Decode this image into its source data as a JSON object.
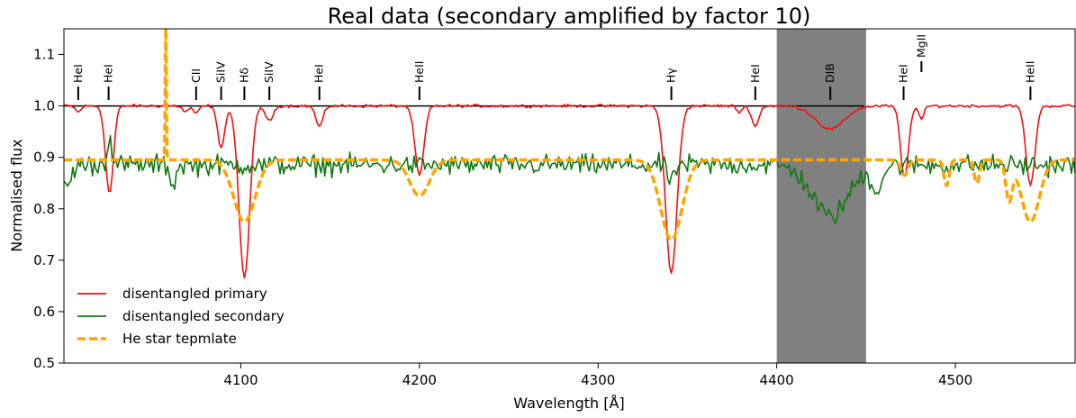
{
  "chart_data": {
    "type": "line",
    "title": "Real data (secondary amplified by factor 10)",
    "xlabel": "Wavelength [Å]",
    "ylabel": "Normalised flux",
    "xlim": [
      4001,
      4567
    ],
    "ylim": [
      0.5,
      1.15
    ],
    "xticks": [
      4100,
      4200,
      4300,
      4400,
      4500
    ],
    "yticks": [
      0.5,
      0.6,
      0.7,
      0.8,
      0.9,
      1.0,
      1.1
    ],
    "ytick_labels": [
      "0.5",
      "0.6",
      "0.7",
      "0.8",
      "0.9",
      "1.0",
      "1.1"
    ],
    "grid": false,
    "legend_position": "lower-left",
    "shaded_region": {
      "x0": 4400,
      "x1": 4450,
      "color": "#808080"
    },
    "reference_line": {
      "y": 1.0,
      "x0": 4001,
      "x1": 4449,
      "color": "#000000"
    },
    "line_labels": [
      {
        "text": "HeI",
        "x": 4009
      },
      {
        "text": "HeI",
        "x": 4026
      },
      {
        "text": "CII",
        "x": 4075
      },
      {
        "text": "SiIV",
        "x": 4089
      },
      {
        "text": "Hδ",
        "x": 4102
      },
      {
        "text": "SiIV",
        "x": 4116
      },
      {
        "text": "HeI",
        "x": 4144
      },
      {
        "text": "HeII",
        "x": 4200
      },
      {
        "text": "Hγ",
        "x": 4341
      },
      {
        "text": "HeI",
        "x": 4388
      },
      {
        "text": "DIB",
        "x": 4430
      },
      {
        "text": "HeI",
        "x": 4471
      },
      {
        "text": "MgII",
        "x": 4481,
        "raised": true
      },
      {
        "text": "HeII",
        "x": 4542
      }
    ],
    "series": [
      {
        "name": "disentangled primary",
        "color": "#ee1111",
        "style": "solid",
        "baseline": 1.0,
        "noise": 0.002,
        "lines": [
          {
            "c": 4009,
            "d": 0.012,
            "w": 1.5
          },
          {
            "c": 4026.5,
            "d": 0.17,
            "w": 2.2
          },
          {
            "c": 4069,
            "d": 0.012,
            "w": 1.5
          },
          {
            "c": 4075,
            "d": 0.015,
            "w": 1.5
          },
          {
            "c": 4089,
            "d": 0.08,
            "w": 2.0
          },
          {
            "c": 4102,
            "d": 0.335,
            "w": 3.0
          },
          {
            "c": 4116,
            "d": 0.03,
            "w": 2.0
          },
          {
            "c": 4144,
            "d": 0.04,
            "w": 2.0
          },
          {
            "c": 4200,
            "d": 0.135,
            "w": 2.5
          },
          {
            "c": 4341,
            "d": 0.325,
            "w": 3.2
          },
          {
            "c": 4379,
            "d": 0.012,
            "w": 1.5
          },
          {
            "c": 4388,
            "d": 0.04,
            "w": 2.0
          },
          {
            "c": 4430,
            "d": 0.045,
            "w": 8.0
          },
          {
            "c": 4471.5,
            "d": 0.14,
            "w": 2.2
          },
          {
            "c": 4481,
            "d": 0.025,
            "w": 1.5
          },
          {
            "c": 4542,
            "d": 0.155,
            "w": 2.5
          }
        ]
      },
      {
        "name": "disentangled secondary",
        "color": "#117711",
        "style": "solid",
        "baseline": 0.885,
        "noise": 0.014,
        "lines": [
          {
            "c": 4003,
            "d": 0.045,
            "w": 2.0
          },
          {
            "c": 4026.5,
            "d": -0.06,
            "w": 1.2
          },
          {
            "c": 4062,
            "d": 0.04,
            "w": 1.5
          },
          {
            "c": 4341,
            "d": 0.04,
            "w": 1.5
          },
          {
            "c": 4430,
            "d": 0.1,
            "w": 10.0
          },
          {
            "c": 4456,
            "d": 0.045,
            "w": 3.0
          }
        ]
      },
      {
        "name": "He star tepmlate",
        "color": "#ffa500",
        "style": "dashed",
        "baseline": 0.895,
        "noise": 0.0,
        "lines": [
          {
            "c": 4058,
            "d": -0.255,
            "w": 0.3
          },
          {
            "c": 4102,
            "d": 0.12,
            "w": 6.0
          },
          {
            "c": 4200,
            "d": 0.07,
            "w": 5.5
          },
          {
            "c": 4341,
            "d": 0.155,
            "w": 6.0
          },
          {
            "c": 4471.5,
            "d": 0.03,
            "w": 2.0
          },
          {
            "c": 4495,
            "d": 0.05,
            "w": 1.5
          },
          {
            "c": 4512,
            "d": 0.045,
            "w": 1.5
          },
          {
            "c": 4530,
            "d": 0.075,
            "w": 1.8
          },
          {
            "c": 4542,
            "d": 0.12,
            "w": 5.0
          }
        ]
      }
    ]
  }
}
